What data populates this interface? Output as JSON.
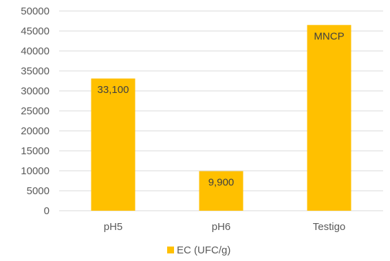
{
  "chart_data": {
    "type": "bar",
    "categories": [
      "pH5",
      "pH6",
      "Testigo"
    ],
    "series": [
      {
        "name": "EC (UFC/g)",
        "values": [
          33100,
          9900,
          46500
        ],
        "data_labels": [
          "33,100",
          "9,900",
          "MNCP"
        ],
        "color": "#FFC000"
      }
    ],
    "ylim": [
      0,
      50000
    ],
    "yticks": [
      0,
      5000,
      10000,
      15000,
      20000,
      25000,
      30000,
      35000,
      40000,
      45000,
      50000
    ],
    "grid": true,
    "legend": "bottom",
    "title": "",
    "xlabel": "",
    "ylabel": ""
  },
  "colors": {
    "bar": "#FFC000",
    "gridline": "#D9D9D9",
    "text": "#595959"
  }
}
